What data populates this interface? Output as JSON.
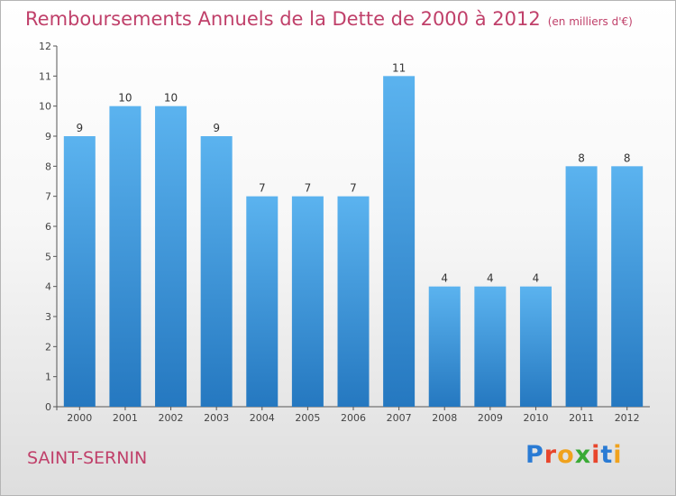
{
  "title": "Remboursements Annuels de la Dette de 2000 à 2012",
  "unit": "(en milliers d'€)",
  "commune": "SAINT-SERNIN",
  "logo": {
    "letters": [
      "P",
      "r",
      "o",
      "x",
      "i",
      "t",
      "i"
    ],
    "colors": [
      "#2a7bd4",
      "#e8452c",
      "#f0a21d",
      "#3aaa35",
      "#e8452c",
      "#2a7bd4",
      "#f0a21d"
    ]
  },
  "colors": {
    "bar": "#3d9be0",
    "bar_light": "#5bb3ef",
    "bar_dark": "#2578c0",
    "title": "#c0406a"
  },
  "chart_data": {
    "type": "bar",
    "categories": [
      "2000",
      "2001",
      "2002",
      "2003",
      "2004",
      "2005",
      "2006",
      "2007",
      "2008",
      "2009",
      "2010",
      "2011",
      "2012"
    ],
    "values": [
      9,
      10,
      10,
      9,
      7,
      7,
      7,
      11,
      4,
      4,
      4,
      8,
      8
    ],
    "labels": [
      "9",
      "10",
      "10",
      "9",
      "7",
      "7",
      "7",
      "11",
      "4",
      "4",
      "4",
      "8",
      "8"
    ],
    "yticks": [
      "0",
      "1",
      "2",
      "3",
      "4",
      "5",
      "6",
      "7",
      "8",
      "9",
      "10",
      "11",
      "12"
    ],
    "ylim": [
      0,
      12
    ],
    "grid": false,
    "legend": "none"
  }
}
